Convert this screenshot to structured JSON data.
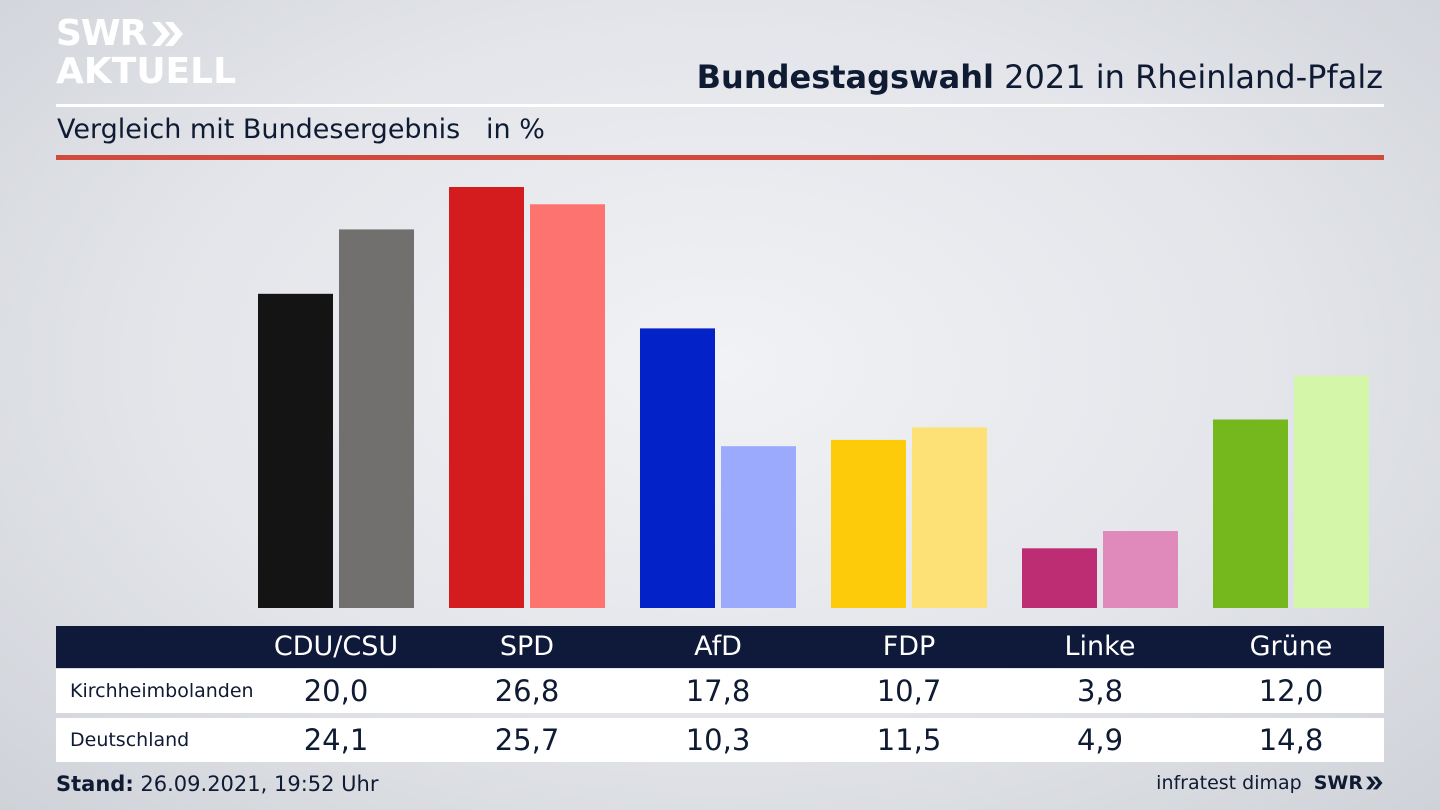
{
  "brand": {
    "logo_top": "SWR",
    "logo_bottom": "AKTUELL",
    "footer_logo": "SWR",
    "white": "#ffffff"
  },
  "header": {
    "title_bold": "Bundestagswahl",
    "title_rest": " 2021 in Rheinland-Pfalz",
    "subtitle": "Vergleich mit Bundesergebnis   in %"
  },
  "chart_data": {
    "type": "bar",
    "categories": [
      "CDU/CSU",
      "SPD",
      "AfD",
      "FDP",
      "Linke",
      "Grüne"
    ],
    "series": [
      {
        "name": "Kirchheimbolanden",
        "values": [
          20.0,
          26.8,
          17.8,
          10.7,
          3.8,
          12.0
        ],
        "labels": [
          "20,0",
          "26,8",
          "17,8",
          "10,7",
          "3,8",
          "12,0"
        ],
        "colors": [
          "#141414",
          "#d41c1e",
          "#0322c8",
          "#fecb0b",
          "#bd2d74",
          "#74b81e"
        ]
      },
      {
        "name": "Deutschland",
        "values": [
          24.1,
          25.7,
          10.3,
          11.5,
          4.9,
          14.8
        ],
        "labels": [
          "24,1",
          "25,7",
          "10,3",
          "11,5",
          "4,9",
          "14,8"
        ],
        "colors": [
          "#72706e",
          "#fc736f",
          "#9caafe",
          "#fde076",
          "#e08abb",
          "#d4f6a8"
        ]
      }
    ],
    "ylim": [
      0,
      26.8
    ],
    "grid": false,
    "legend": "table-below"
  },
  "footer": {
    "stand_label": "Stand:",
    "stand_value": " 26.09.2021, 19:52 Uhr",
    "source": "infratest dimap"
  }
}
